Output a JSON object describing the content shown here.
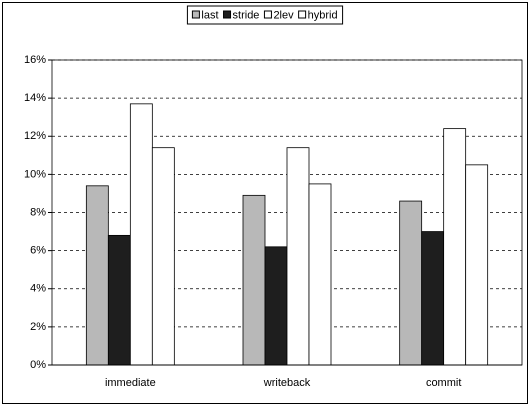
{
  "chart_data": {
    "type": "bar",
    "categories": [
      "immediate",
      "writeback",
      "commit"
    ],
    "series": [
      {
        "name": "last",
        "color": "#b8b8b8",
        "values": [
          9.4,
          8.9,
          8.6
        ]
      },
      {
        "name": "stride",
        "color": "#1e1e1e",
        "values": [
          6.8,
          6.2,
          7.0
        ]
      },
      {
        "name": "2lev",
        "color": "#ffffff",
        "values": [
          13.7,
          11.4,
          12.4
        ]
      },
      {
        "name": "hybrid",
        "color": "#ffffff",
        "values": [
          11.4,
          9.5,
          10.5
        ]
      }
    ],
    "ylim": [
      0,
      16
    ],
    "yticks": [
      {
        "value": 0,
        "label": "0%"
      },
      {
        "value": 2,
        "label": "2%"
      },
      {
        "value": 4,
        "label": "4%"
      },
      {
        "value": 6,
        "label": "6%"
      },
      {
        "value": 8,
        "label": "8%"
      },
      {
        "value": 10,
        "label": "10%"
      },
      {
        "value": 12,
        "label": "12%"
      },
      {
        "value": 14,
        "label": "14%"
      },
      {
        "value": 16,
        "label": "16%"
      }
    ],
    "grid": true,
    "legend": "top"
  }
}
